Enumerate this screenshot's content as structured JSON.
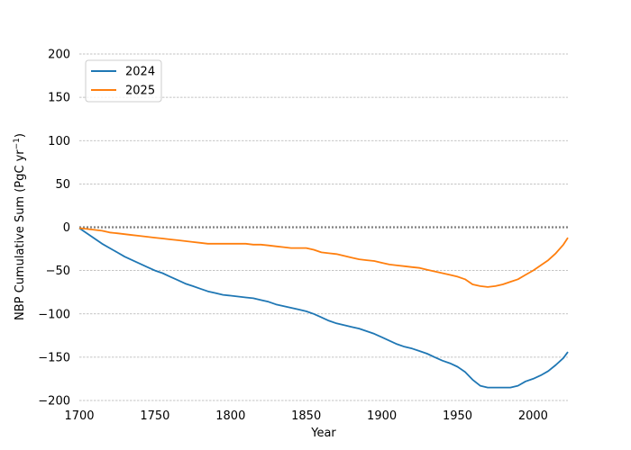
{
  "chart_data": {
    "type": "line",
    "title": "",
    "xlabel": "Year",
    "ylabel": "NBP Cumulative Sum (PgC yr",
    "ylabel_sup": "−1",
    "ylabel_suffix": ")",
    "xlim": [
      1700,
      2023
    ],
    "ylim": [
      -200,
      200
    ],
    "xticks": [
      1700,
      1750,
      1800,
      1850,
      1900,
      1950,
      2000
    ],
    "yticks": [
      200,
      150,
      100,
      50,
      0,
      -50,
      -100,
      -150,
      -200
    ],
    "xtick_labels": [
      "1700",
      "1750",
      "1800",
      "1850",
      "1900",
      "1950",
      "2000"
    ],
    "ytick_labels": [
      "200",
      "150",
      "100",
      "50",
      "0",
      "−50",
      "−100",
      "−150",
      "−200"
    ],
    "grid": "y-dashed",
    "zero_line": "dotted",
    "legend_position": "top-left",
    "series": [
      {
        "name": "2024",
        "color": "#1f77b4",
        "x": [
          1700,
          1705,
          1710,
          1715,
          1720,
          1725,
          1730,
          1735,
          1740,
          1745,
          1750,
          1755,
          1760,
          1765,
          1770,
          1775,
          1780,
          1785,
          1790,
          1795,
          1800,
          1805,
          1810,
          1815,
          1820,
          1825,
          1830,
          1835,
          1840,
          1845,
          1850,
          1855,
          1860,
          1865,
          1870,
          1875,
          1880,
          1885,
          1890,
          1895,
          1900,
          1905,
          1910,
          1915,
          1920,
          1925,
          1930,
          1935,
          1940,
          1945,
          1950,
          1955,
          1960,
          1965,
          1970,
          1975,
          1980,
          1985,
          1990,
          1995,
          2000,
          2005,
          2010,
          2015,
          2020,
          2023
        ],
        "y": [
          -1,
          -7,
          -13,
          -19,
          -24,
          -29,
          -34,
          -38,
          -42,
          -46,
          -50,
          -53,
          -57,
          -61,
          -65,
          -68,
          -71,
          -74,
          -76,
          -78,
          -79,
          -80,
          -81,
          -82,
          -84,
          -86,
          -89,
          -91,
          -93,
          -95,
          -97,
          -100,
          -104,
          -108,
          -111,
          -113,
          -115,
          -117,
          -120,
          -123,
          -127,
          -131,
          -135,
          -138,
          -140,
          -143,
          -146,
          -150,
          -154,
          -157,
          -161,
          -167,
          -176,
          -183,
          -185,
          -185,
          -185,
          -185,
          -183,
          -178,
          -175,
          -171,
          -166,
          -159,
          -151,
          -144
        ]
      },
      {
        "name": "2025",
        "color": "#ff7f0e",
        "x": [
          1700,
          1705,
          1710,
          1715,
          1720,
          1725,
          1730,
          1735,
          1740,
          1745,
          1750,
          1755,
          1760,
          1765,
          1770,
          1775,
          1780,
          1785,
          1790,
          1795,
          1800,
          1805,
          1810,
          1815,
          1820,
          1825,
          1830,
          1835,
          1840,
          1845,
          1850,
          1855,
          1860,
          1865,
          1870,
          1875,
          1880,
          1885,
          1890,
          1895,
          1900,
          1905,
          1910,
          1915,
          1920,
          1925,
          1930,
          1935,
          1940,
          1945,
          1950,
          1955,
          1960,
          1965,
          1970,
          1975,
          1980,
          1985,
          1990,
          1995,
          2000,
          2005,
          2010,
          2015,
          2020,
          2023
        ],
        "y": [
          -1,
          -2,
          -3,
          -4,
          -6,
          -7,
          -8,
          -9,
          -10,
          -11,
          -12,
          -13,
          -14,
          -15,
          -16,
          -17,
          -18,
          -19,
          -19,
          -19,
          -19,
          -19,
          -19,
          -20,
          -20,
          -21,
          -22,
          -23,
          -24,
          -24,
          -24,
          -26,
          -29,
          -30,
          -31,
          -33,
          -35,
          -37,
          -38,
          -39,
          -41,
          -43,
          -44,
          -45,
          -46,
          -47,
          -49,
          -51,
          -53,
          -55,
          -57,
          -60,
          -66,
          -68,
          -69,
          -68,
          -66,
          -63,
          -60,
          -55,
          -50,
          -44,
          -38,
          -30,
          -20,
          -12
        ]
      }
    ]
  }
}
